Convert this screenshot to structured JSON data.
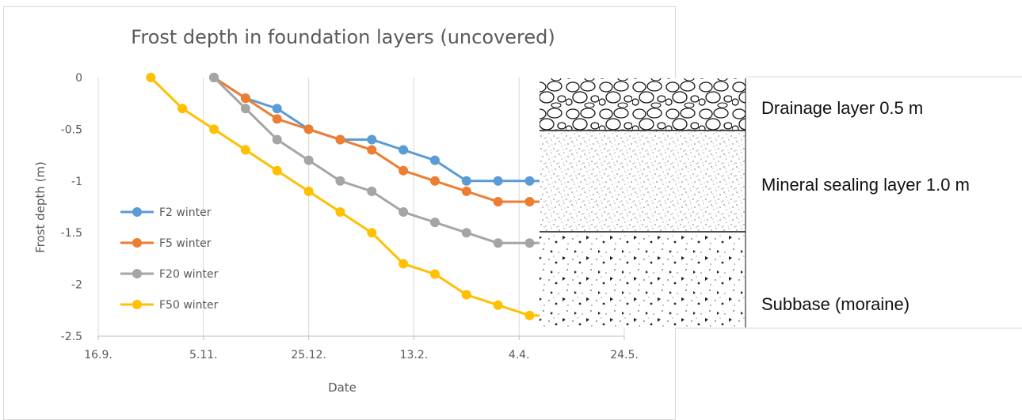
{
  "chart_data": {
    "type": "line",
    "title": "Frost depth in foundation layers (uncovered)",
    "xlabel": "Date",
    "ylabel": "Frost depth (m)",
    "x_tick_labels": [
      "16.9.",
      "5.11.",
      "25.12.",
      "13.2.",
      "4.4.",
      "24.5."
    ],
    "x_ticks_day": [
      0,
      50,
      100,
      150,
      200,
      250
    ],
    "x_start_date": "16.9.",
    "ylim": [
      -2.5,
      0
    ],
    "y_ticks": [
      0,
      -0.5,
      -1,
      -1.5,
      -2,
      -2.5
    ],
    "y_tick_labels": [
      "0",
      "-0.5",
      "-1",
      "-1.5",
      "-2",
      "-2.5"
    ],
    "grid": "vertical",
    "legend_position": "lower-left inside",
    "series": [
      {
        "name": "F2 winter",
        "color": "#5b9bd5",
        "x": [
          55,
          70,
          85,
          100,
          115,
          130,
          145,
          160,
          175,
          190,
          205,
          220
        ],
        "y": [
          0,
          -0.2,
          -0.3,
          -0.5,
          -0.6,
          -0.6,
          -0.7,
          -0.8,
          -1.0,
          -1.0,
          -1.0,
          -1.0
        ]
      },
      {
        "name": "F5 winter",
        "color": "#ed7d31",
        "x": [
          55,
          70,
          85,
          100,
          115,
          130,
          145,
          160,
          175,
          190,
          205,
          220
        ],
        "y": [
          0,
          -0.2,
          -0.4,
          -0.5,
          -0.6,
          -0.7,
          -0.9,
          -1.0,
          -1.1,
          -1.2,
          -1.2,
          -1.2
        ]
      },
      {
        "name": "F20 winter",
        "color": "#a5a5a5",
        "x": [
          55,
          70,
          85,
          100,
          115,
          130,
          145,
          160,
          175,
          190,
          205,
          220
        ],
        "y": [
          0,
          -0.3,
          -0.6,
          -0.8,
          -1.0,
          -1.1,
          -1.3,
          -1.4,
          -1.5,
          -1.6,
          -1.6,
          -1.6
        ]
      },
      {
        "name": "F50 winter",
        "color": "#ffc000",
        "x": [
          25,
          40,
          55,
          70,
          85,
          100,
          115,
          130,
          145,
          160,
          175,
          190,
          205,
          220
        ],
        "y": [
          0,
          -0.3,
          -0.5,
          -0.7,
          -0.9,
          -1.1,
          -1.3,
          -1.5,
          -1.8,
          -1.9,
          -2.1,
          -2.2,
          -2.3,
          -2.3
        ]
      }
    ]
  },
  "soil_profile": {
    "layers": [
      {
        "name": "Drainage layer 0.5 m",
        "pattern": "gravel"
      },
      {
        "name": "Mineral sealing layer 1.0 m",
        "pattern": "fine-dots"
      },
      {
        "name": "Subbase (moraine)",
        "pattern": "coarse-dots"
      }
    ]
  }
}
